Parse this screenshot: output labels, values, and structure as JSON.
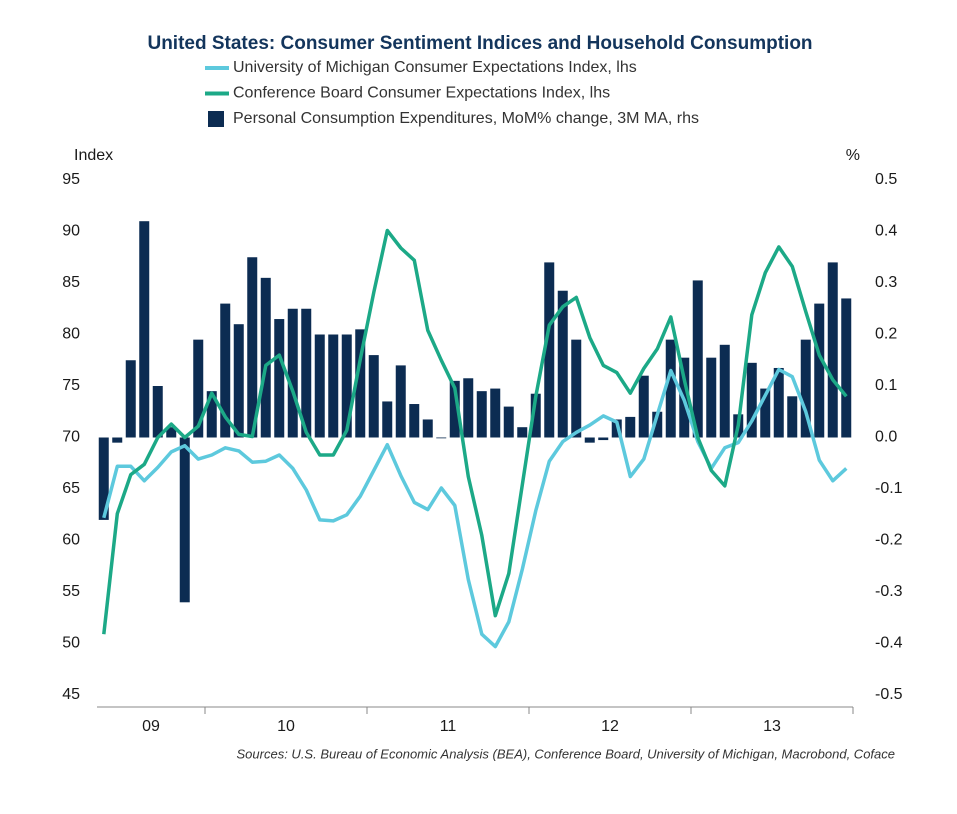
{
  "chart_data": {
    "type": "bar-line",
    "title": "United States: Consumer Sentiment Indices and Household Consumption",
    "ylabel": "Index",
    "y2label": "%",
    "source": "Sources: U.S. Bureau of Economic Analysis (BEA), Conference Board, University of Michigan, Macrobond, Coface",
    "categories": [
      null,
      null,
      null,
      "09",
      null,
      null,
      null,
      null,
      null,
      null,
      null,
      null,
      null,
      "10",
      null,
      null,
      null,
      null,
      null,
      null,
      null,
      null,
      null,
      null,
      null,
      "11",
      null,
      null,
      null,
      null,
      null,
      null,
      null,
      null,
      null,
      null,
      null,
      "12",
      null,
      null,
      null,
      null,
      null,
      null,
      null,
      null,
      null,
      null,
      null,
      "13",
      null,
      null,
      null,
      null,
      null,
      null
    ],
    "ylim": [
      45,
      95
    ],
    "yticks": [
      45,
      50,
      55,
      60,
      65,
      70,
      75,
      80,
      85,
      90,
      95
    ],
    "y2lim": [
      -0.5,
      0.5
    ],
    "y2ticks": [
      -0.5,
      -0.4,
      -0.3,
      -0.2,
      -0.1,
      {
        "value": 0,
        "label": "0.0"
      },
      0.1,
      0.2,
      0.3,
      0.4,
      0.5
    ],
    "series": [
      {
        "name": "University of Michigan Consumer Expectations Index, lhs",
        "type": "line",
        "color": "#5dc9dd",
        "values": [
          62.2,
          67.2,
          67.2,
          65.8,
          67.1,
          68.6,
          69.2,
          67.9,
          68.3,
          69.0,
          68.7,
          67.6,
          67.7,
          68.3,
          67.0,
          64.9,
          62.0,
          61.9,
          62.5,
          64.3,
          66.8,
          69.3,
          66.3,
          63.7,
          63.0,
          65.1,
          63.4,
          56.2,
          50.9,
          49.7,
          52.1,
          57.2,
          62.9,
          67.7,
          69.6,
          70.5,
          71.2,
          72.1,
          71.5,
          66.2,
          67.9,
          72.2,
          76.5,
          73.6,
          69.6,
          67.0,
          69.0,
          69.5,
          71.6,
          74.1,
          76.6,
          75.9,
          72.5,
          67.8,
          65.8,
          67.0
        ]
      },
      {
        "name": "Conference Board Consumer Expectations Index, lhs",
        "type": "line",
        "color": "#1ca987",
        "values": [
          50.9,
          62.6,
          66.4,
          67.4,
          70.0,
          71.3,
          70.0,
          71.1,
          74.3,
          72.0,
          70.3,
          70.1,
          77.0,
          78.0,
          74.5,
          70.5,
          68.3,
          68.3,
          70.7,
          77.6,
          84.1,
          90.1,
          88.4,
          87.2,
          80.4,
          77.5,
          74.8,
          66.2,
          60.5,
          52.7,
          56.8,
          65.4,
          74.0,
          80.9,
          82.7,
          83.6,
          79.7,
          77.0,
          76.3,
          74.3,
          76.7,
          78.6,
          81.7,
          75.6,
          70.0,
          66.8,
          65.3,
          71.2,
          81.9,
          86.0,
          88.5,
          86.6,
          82.2,
          78.0,
          75.6,
          74.0
        ]
      },
      {
        "name": "Personal Consumption Expenditures, MoM% change, 3M MA, rhs",
        "type": "bar",
        "axis": "y2",
        "color": "#0c2c52",
        "values": [
          -0.16,
          -0.01,
          0.15,
          0.42,
          0.1,
          0.02,
          -0.32,
          0.19,
          0.09,
          0.26,
          0.22,
          0.35,
          0.31,
          0.23,
          0.25,
          0.25,
          0.2,
          0.2,
          0.2,
          0.21,
          0.16,
          0.07,
          0.14,
          0.065,
          0.035,
          0,
          0.11,
          0.115,
          0.09,
          0.095,
          0.06,
          0.02,
          0.085,
          0.34,
          0.285,
          0.19,
          -0.01,
          -0.005,
          0.035,
          0.04,
          0.12,
          0.05,
          0.19,
          0.155,
          0.305,
          0.155,
          0.18,
          0.045,
          0.145,
          0.095,
          0.135,
          0.08,
          0.19,
          0.26,
          0.34,
          0.27
        ]
      }
    ]
  }
}
